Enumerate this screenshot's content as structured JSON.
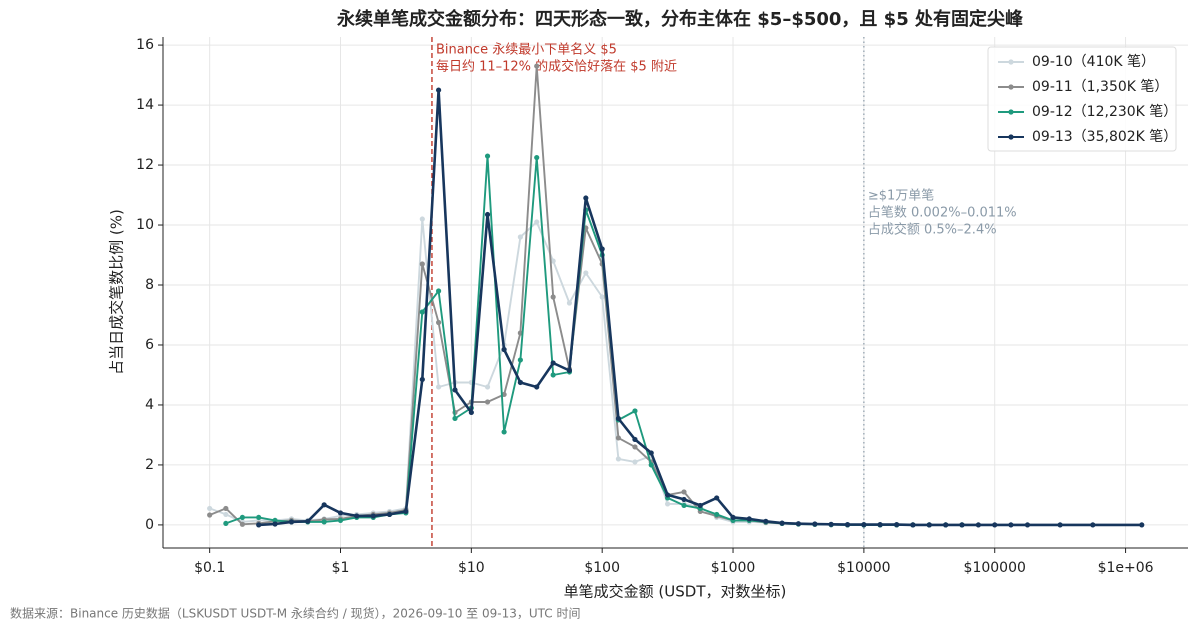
{
  "chart_data": {
    "type": "line",
    "title": "永续单笔成交金额分布：四天形态一致，分布主体在 $5–$500，且 $5 处有固定尖峰",
    "x_label": "单笔成交金额 (USDT，对数坐标)",
    "y_label": "占当日成交笔数比例 (%)",
    "source": "数据来源：Binance 历史数据（LSKUSDT USDT-M 永续合约 / 现货），2026-09-10 至 09-13，UTC 时间",
    "xscale": "log",
    "grid": true,
    "legend": "upper right",
    "xlim": [
      0.044,
      3000000
    ],
    "ylim": [
      -0.77,
      16.27
    ],
    "xticks": [
      {
        "value": 0.1,
        "label": "$0.1"
      },
      {
        "value": 1,
        "label": "$1"
      },
      {
        "value": 10,
        "label": "$10"
      },
      {
        "value": 100,
        "label": "$100"
      },
      {
        "value": 1000,
        "label": "$1000"
      },
      {
        "value": 10000,
        "label": "$10000"
      },
      {
        "value": 100000,
        "label": "$100000"
      },
      {
        "value": 1000000,
        "label": "$1e+06"
      }
    ],
    "yticks": [
      0,
      2,
      4,
      6,
      8,
      10,
      12,
      14,
      16
    ],
    "annotations": [
      {
        "x": 5,
        "color": "#c0392b",
        "style": "dashed",
        "lines": [
          "Binance 永续最小下单名义 $5",
          "每日约 11–12% 的成交恰好落在 $5 附近"
        ]
      },
      {
        "x": 10000,
        "color": "#8a9aa8",
        "style": "dotted",
        "lines": [
          "≥$1万单笔",
          "占笔数 0.002%–0.011%",
          "占成交额 0.5%–2.4%"
        ]
      }
    ],
    "series": [
      {
        "name": "09-10（410K 笔）",
        "color": "#cdd8de",
        "x": [
          0.1,
          0.133,
          0.178,
          0.237,
          0.316,
          0.422,
          0.562,
          0.75,
          1,
          1.33,
          1.78,
          2.37,
          3.16,
          4.22,
          5.62,
          7.5,
          10,
          13.3,
          17.8,
          23.7,
          31.6,
          42.2,
          56.2,
          75,
          100,
          133,
          178,
          237,
          316,
          422,
          562,
          750,
          1000,
          1330,
          1780,
          2370,
          3160,
          4220,
          5620,
          7500,
          10000,
          13300,
          17800,
          23700,
          31600
        ],
        "values": [
          0.55,
          0.35,
          0.1,
          0.15,
          0.15,
          0.2,
          0.15,
          0.2,
          0.3,
          0.35,
          0.4,
          0.45,
          0.55,
          10.2,
          4.6,
          4.75,
          4.75,
          4.6,
          6.0,
          9.6,
          10.1,
          8.8,
          7.4,
          8.4,
          7.6,
          2.2,
          2.1,
          2.3,
          0.7,
          0.7,
          0.6,
          0.25,
          0.1,
          0.1,
          0.08,
          0.05,
          0.03,
          0.02,
          0.01,
          0.01,
          0,
          0,
          0,
          0,
          0
        ]
      },
      {
        "name": "09-11（1,350K 笔）",
        "color": "#8c8c8c",
        "x": [
          0.1,
          0.133,
          0.178,
          0.237,
          0.316,
          0.422,
          0.562,
          0.75,
          1,
          1.33,
          1.78,
          2.37,
          3.16,
          4.22,
          5.62,
          7.5,
          10,
          13.3,
          17.8,
          23.7,
          31.6,
          42.2,
          56.2,
          75,
          100,
          133,
          178,
          237,
          316,
          422,
          562,
          750,
          1000,
          1330,
          1780,
          2370,
          3160,
          4220,
          5620,
          7500,
          10000,
          13300,
          17800,
          23700,
          31600,
          42200,
          56200
        ],
        "values": [
          0.33,
          0.55,
          0.02,
          0.05,
          0.12,
          0.15,
          0.12,
          0.18,
          0.2,
          0.3,
          0.35,
          0.4,
          0.5,
          8.7,
          6.75,
          3.75,
          4.1,
          4.1,
          4.35,
          6.4,
          15.3,
          7.6,
          5.2,
          9.9,
          8.7,
          2.9,
          2.6,
          2.1,
          1.0,
          1.1,
          0.45,
          0.3,
          0.15,
          0.15,
          0.08,
          0.05,
          0.03,
          0.02,
          0.01,
          0,
          0,
          0,
          0,
          0,
          0,
          0,
          0
        ]
      },
      {
        "name": "09-12（12,230K 笔）",
        "color": "#1f9a7e",
        "x": [
          0.133,
          0.178,
          0.237,
          0.316,
          0.422,
          0.562,
          0.75,
          1,
          1.33,
          1.78,
          2.37,
          3.16,
          4.22,
          5.62,
          7.5,
          10,
          13.3,
          17.8,
          23.7,
          31.6,
          42.2,
          56.2,
          75,
          100,
          133,
          178,
          237,
          316,
          422,
          562,
          750,
          1000,
          1330,
          1780,
          2370,
          3160,
          4220,
          5620,
          7500,
          10000,
          13300,
          17800,
          23700,
          31600,
          42200,
          56200
        ],
        "values": [
          0.05,
          0.25,
          0.25,
          0.15,
          0.1,
          0.1,
          0.1,
          0.15,
          0.25,
          0.25,
          0.35,
          0.4,
          7.1,
          7.8,
          3.55,
          3.9,
          12.3,
          3.1,
          5.5,
          12.25,
          5.0,
          5.1,
          10.5,
          9.0,
          3.5,
          3.8,
          2.0,
          0.9,
          0.65,
          0.55,
          0.35,
          0.15,
          0.15,
          0.1,
          0.05,
          0.03,
          0.02,
          0.01,
          0,
          0,
          0,
          0,
          0,
          0,
          0,
          0
        ]
      },
      {
        "name": "09-13（35,802K 笔）",
        "color": "#17365d",
        "x": [
          0.237,
          0.316,
          0.422,
          0.562,
          0.75,
          1,
          1.33,
          1.78,
          2.37,
          3.16,
          4.22,
          5.62,
          7.5,
          10,
          13.3,
          17.8,
          23.7,
          31.6,
          42.2,
          56.2,
          75,
          100,
          133,
          178,
          237,
          316,
          422,
          562,
          750,
          1000,
          1330,
          1780,
          2370,
          3160,
          4220,
          5620,
          7500,
          10000,
          13300,
          17800,
          23700,
          31600,
          42200,
          56200,
          75000,
          100000,
          133000,
          178000,
          316000,
          562000,
          1330000
        ],
        "values": [
          0,
          0.03,
          0.1,
          0.12,
          0.67,
          0.4,
          0.3,
          0.3,
          0.35,
          0.45,
          4.85,
          14.5,
          4.5,
          3.75,
          10.35,
          5.85,
          4.75,
          4.6,
          5.4,
          5.15,
          10.9,
          9.2,
          3.55,
          2.85,
          2.4,
          1.0,
          0.85,
          0.65,
          0.9,
          0.25,
          0.2,
          0.12,
          0.06,
          0.04,
          0.03,
          0.02,
          0.01,
          0.01,
          0.01,
          0.01,
          0,
          0,
          0,
          0,
          0,
          0,
          0,
          0,
          0,
          0,
          0
        ]
      }
    ]
  }
}
